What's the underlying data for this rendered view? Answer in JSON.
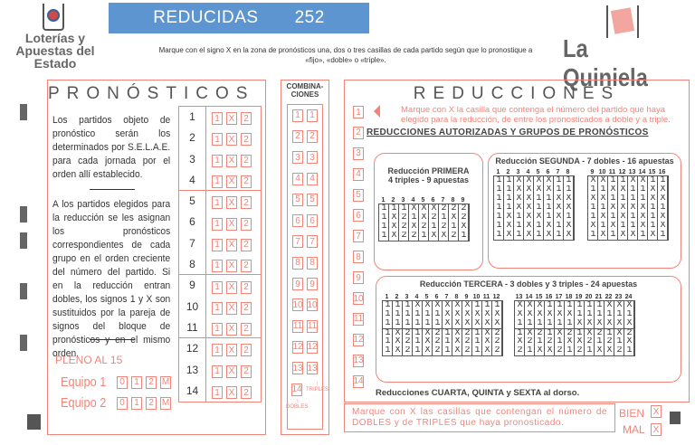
{
  "header": {
    "title": "REDUCIDAS",
    "number": "252",
    "color": "#5d95d0"
  },
  "brand_left": "Loterías y Apuestas del Estado",
  "brand_right": "La Quiniela",
  "instructions": "Marque con el signo X en la zona de pronósticos una, dos o tres casillas de cada partido según que lo pronostique a «fijo», «doble» o «triple».",
  "pronosticos": {
    "title": "PRONÓSTICOS",
    "para1": "Los partidos objeto de pronóstico serán los determinados por S.E.L.A.E. para cada jornada por el orden allí establecido.",
    "para2": "A los partidos elegidos para la reducción se les asignan los pronósticos correspondientes de cada grupo en el orden creciente del número del partido. Si en la reducción entran dobles, los signos 1 y X son sustituidos por la pareja de signos del bloque de pronósticos y en el mismo orden.",
    "signs": [
      "1",
      "X",
      "2"
    ],
    "matches": [
      "1",
      "2",
      "3",
      "4",
      "5",
      "6",
      "7",
      "8",
      "9",
      "10",
      "11",
      "12",
      "13",
      "14"
    ],
    "pleno": "PLENO AL 15",
    "equipo1": "Equipo 1",
    "equipo2": "Equipo 2",
    "goals": [
      "0",
      "1",
      "2",
      "M"
    ]
  },
  "combinaciones": {
    "title": "COMBINA-CIONES",
    "dobles": "DOBLES",
    "triples": "TRIPLES",
    "arrow": "↑"
  },
  "reducciones": {
    "title": "REDUCCIONES",
    "note": "Marque con X la casilla que contenga el número del partido que haya elegido para la reducción, de entre los pronosticados a doble y a triple.",
    "heading": "REDUCCIONES AUTORIZADAS Y GRUPOS DE PRONÓSTICOS",
    "primera": {
      "title": "Reducción PRIMERA",
      "subtitle": "4 triples - 9 apuestas",
      "groups": [
        {
          "start": 1,
          "rows": [
            "111XXX222",
            "1X21X21X2",
            "1X2X2121X",
            "1X221XX21"
          ]
        }
      ]
    },
    "segunda": {
      "title": "Reducción SEGUNDA - 7 dobles - 16 apuestas",
      "groups": [
        {
          "start": 1,
          "rows": [
            "11XXXX11",
            "11XXXX11",
            "11XX11XX",
            "11XX11XX",
            "1X1XX1X1",
            "1X1X1X1X",
            "1X1X1X1X"
          ]
        },
        {
          "start": 9,
          "rows": [
            "XX11XX11",
            "11XX11XX",
            "XX1111XX",
            "11XXXX11",
            "1X1X1X1X",
            "X1X11X1X",
            "1X1XX1X1"
          ]
        }
      ]
    },
    "tercera": {
      "title": "Reducción TERCERA - 3 dobles y 3 triples - 24 apuestas",
      "groups": [
        {
          "start": 1,
          "rows": [
            "111XXXXXX111",
            "111111XXXXXX",
            "111111XXXXXX",
            "1X21X21X21X2",
            "1X21X21X21X2",
            "1X21X21X21X2"
          ]
        },
        {
          "start": 13,
          "rows": [
            "XXX111111XXX",
            "XXXXXX111111",
            "111111XXXXXX",
            "1X21X21X21X2",
            "X2121XX2121X",
            "21XX2121XX21"
          ]
        }
      ]
    },
    "footer": "Reducciones CUARTA, QUINTA y SEXTA al dorso."
  },
  "bottom": {
    "note": "Marque con X las casillas que contengan el número de DOBLES y de TRIPLES que haya pronosticado.",
    "bien": "BIEN",
    "mal": "MAL",
    "mark": "X"
  },
  "accent": "#f0857a"
}
